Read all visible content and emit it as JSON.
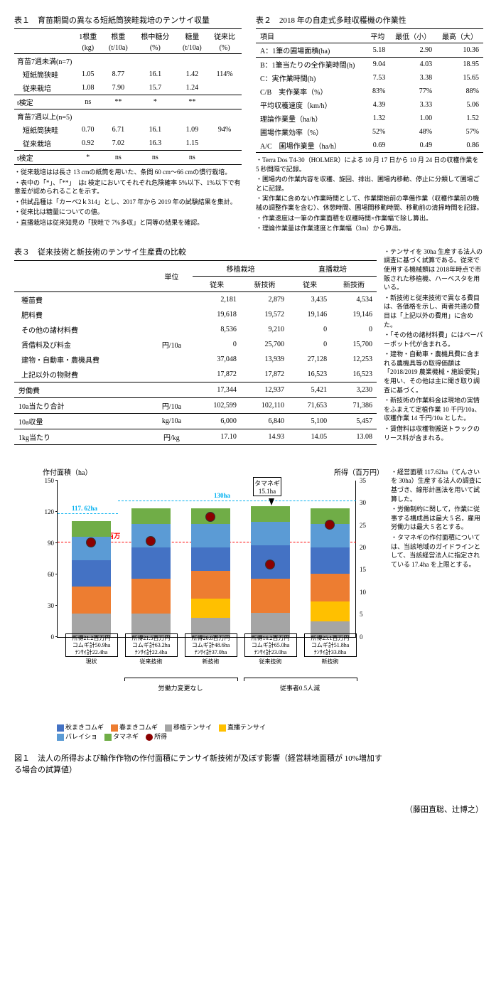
{
  "table1": {
    "title": "表１　育苗期間の異なる短紙筒狭畦栽培のテンサイ収量",
    "headers": [
      "1根重",
      "根重",
      "根中糖分",
      "糖量",
      "従来比"
    ],
    "units": [
      "(kg)",
      "(t/10a)",
      "(%)",
      "(t/10a)",
      "(%)"
    ],
    "group1": "育苗7週未満(n=7)",
    "rows1": [
      {
        "name": "短紙筒狭畦",
        "v": [
          "1.05",
          "8.77",
          "16.1",
          "1.42",
          "114%"
        ]
      },
      {
        "name": "従来栽培",
        "v": [
          "1.08",
          "7.90",
          "15.7",
          "1.24",
          ""
        ]
      }
    ],
    "ttest1": {
      "name": "t検定",
      "v": [
        "ns",
        "**",
        "*",
        "**",
        ""
      ]
    },
    "group2": "育苗7週以上(n=5)",
    "rows2": [
      {
        "name": "短紙筒狭畦",
        "v": [
          "0.70",
          "6.71",
          "16.1",
          "1.09",
          "94%"
        ]
      },
      {
        "name": "従来栽培",
        "v": [
          "0.92",
          "7.02",
          "16.3",
          "1.15",
          ""
        ]
      }
    ],
    "ttest2": {
      "name": "t検定",
      "v": [
        "*",
        "ns",
        "ns",
        "ns",
        ""
      ]
    },
    "notes": [
      "・従来栽培はは長さ 13 cmの紙筒を用いた、条間 60 cm～66 cmの慣行栽培。",
      "・表中の「*」、「**」　はt 検定においてそれぞれ危険確率 5%以下、1%以下で有意差が認められることを示す。",
      "・供試品種は「カーベ2ｋ314」とし、2017 年から 2019 年の試験結果を集計。",
      "・従来比は糖量についての値。",
      "・直播栽培は従来知見の「狭畦で 7%多収」と同等の結果を確認。"
    ]
  },
  "table2": {
    "title": "表２　2018 年の自走式多畦収穫機の作業性",
    "hdr": [
      "項目",
      "平均",
      "最低（小）",
      "最高（大）"
    ],
    "rows": [
      [
        "A：1筆の圃場面積(ha)",
        "5.18",
        "2.90",
        "10.36"
      ],
      [
        "B：1筆当たりの全作業時間(h)",
        "9.04",
        "4.03",
        "18.95"
      ],
      [
        "C：実作業時間(h)",
        "7.53",
        "3.38",
        "15.65"
      ],
      [
        "C/B　実作業率（%）",
        "83%",
        "77%",
        "88%"
      ],
      [
        "平均収穫速度（km/h）",
        "4.39",
        "3.33",
        "5.06"
      ],
      [
        "理論作業量（ha/h）",
        "1.32",
        "1.00",
        "1.52"
      ],
      [
        "圃場作業効率（%）",
        "52%",
        "48%",
        "57%"
      ],
      [
        "A/C　圃場作業量（ha/h）",
        "0.69",
        "0.49",
        "0.86"
      ]
    ],
    "notes": [
      "・Terra Dos T4-30（HOLMER）による 10 月 17 日から 10 月 24 日の収穫作業を 5 秒間隔で記録。",
      "・圃場内の作業内容を収穫、旋回、排出、圃場内移動、停止に分類して圃場ごとに記録。",
      "・実作業に含めない作業時間として、作業開始前の準備作業（収穫作業前の機械の調整作業を含む）、休憩時間、圃場間移動時間、移動前の清掃時間を記録。",
      "・作業速度は一筆の作業面積を収穫時間×作業幅で除し算出。",
      "・理論作業量は作業速度と作業幅（3m）から算出。"
    ]
  },
  "table3": {
    "title": "表３　従来技術と新技術のテンサイ生産費の比較",
    "hdr1": [
      "単位",
      "移植栽培",
      "直播栽培"
    ],
    "hdr2": [
      "従来",
      "新技術",
      "従来",
      "新技術"
    ],
    "unit": "円/10a",
    "rows": [
      [
        "種苗費",
        "2,181",
        "2,879",
        "3,435",
        "4,534"
      ],
      [
        "肥料費",
        "19,618",
        "19,572",
        "19,146",
        "19,146"
      ],
      [
        "その他の諸材料費",
        "8,536",
        "9,210",
        "0",
        "0"
      ],
      [
        "賃借料及び料金",
        "0",
        "25,700",
        "0",
        "15,700"
      ],
      [
        "建物・自動車・農機具費",
        "37,048",
        "13,939",
        "27,128",
        "12,253"
      ],
      [
        "上記以外の物財費",
        "17,872",
        "17,872",
        "16,523",
        "16,523"
      ]
    ],
    "labor": [
      "労働費",
      "17,344",
      "12,937",
      "5,421",
      "3,230"
    ],
    "sum": [
      "10a当たり合計",
      "円/10a",
      "102,599",
      "102,110",
      "71,653",
      "71,386"
    ],
    "yield": [
      "10a収量",
      "kg/10a",
      "6,000",
      "6,840",
      "5,100",
      "5,457"
    ],
    "perkg": [
      "1kg当たり",
      "円/kg",
      "17.10",
      "14.93",
      "14.05",
      "13.08"
    ],
    "notes": [
      "・テンサイを 30ha 生産する法人の調査に基づく試算である。従来で使用する機械類は 2018年時点で市販された移植機、ハーベスタを用いる。",
      "・新技術と従来技術で異なる費目は、各価格を示し、両者共通の費目は「上記以外の費用」に含めた。",
      "・「その他の諸材料費」にはペーパーポット代が含まれる。",
      "・建物・自動車・農機具費に含まれる農機具等の取得価額は「2018/2019 農業機械・施設便覧」を用い、その他は主に聞き取り調査に基づく。",
      "・新技術の作業料金は現地の実情をふまえて定植作業 10 千円/10a、収穫作業 14 千円/10a とした。",
      "・賃借料は収穫物搬送トラックのリース料が含まれる。"
    ]
  },
  "figure1": {
    "ylabel_l": "作付面積（ha）",
    "ylabel_r": "所得（百万円）",
    "ylim": [
      0,
      150
    ],
    "yticks_l": [
      0,
      30,
      60,
      90,
      120,
      150
    ],
    "yticks_r": [
      0,
      5,
      10,
      15,
      20,
      25,
      30,
      35
    ],
    "ref117": "117. 62ha",
    "ref130": "130ha",
    "ref_income": "21. 2 百万",
    "tamanegi_callout": "タマネギ\n15.1ha",
    "colors": {
      "autumn_wheat": "#4472c4",
      "spring_wheat": "#ed7d31",
      "transplant": "#a5a5a5",
      "direct": "#ffc000",
      "potato": "#5b9bd5",
      "onion": "#70ad47",
      "income": "#8b0000",
      "ref_cyan": "#00b0f0",
      "ref_red": "#ff0000"
    },
    "categories": [
      "現状",
      "従来技術",
      "新技術",
      "従来技術",
      "新技術"
    ],
    "group_labels": [
      "労働力変更なし",
      "従事者0.5人減"
    ],
    "bar_labels": [
      "所得21.2百万円\nコムギ計50.9ha\nﾃﾝｻｲ計22.4ha",
      "所得21.5百万円\nコムギ計63.2ha\nﾃﾝｻｲ計22.4ha",
      "所得26.8百万円\nコムギ計48.6ha\nﾃﾝｻｲ計37.0ha",
      "所得16.2百万円\nコムギ計65.0ha\nﾃﾝｻｲ計23.0ha",
      "所得25.1百万円\nコムギ計51.8ha\nﾃﾝｻｲ計33.8ha"
    ],
    "stacks": [
      [
        22.4,
        0,
        25,
        25.9,
        15,
        22.4,
        7
      ],
      [
        22.4,
        0,
        30,
        33.2,
        15,
        22.4,
        7
      ],
      [
        18,
        19,
        22,
        26.6,
        15,
        22.4,
        7
      ],
      [
        23,
        0,
        32,
        33,
        15,
        22.4,
        7
      ],
      [
        15,
        18.8,
        25,
        26.8,
        15,
        22.4,
        7
      ]
    ],
    "income": [
      21.2,
      21.5,
      26.8,
      16.2,
      25.1
    ],
    "legend": [
      {
        "label": "秋まきコムギ",
        "color": "autumn_wheat"
      },
      {
        "label": "春まきコムギ",
        "color": "spring_wheat"
      },
      {
        "label": "移植テンサイ",
        "color": "transplant"
      },
      {
        "label": "直播テンサイ",
        "color": "direct"
      },
      {
        "label": "バレイショ",
        "color": "potato"
      },
      {
        "label": "タマネギ",
        "color": "onion"
      },
      {
        "label": "所得",
        "color": "income",
        "shape": "circle"
      }
    ],
    "caption": "図１　法人の所得および輪作作物の作付面積にテンサイ新技術が及ぼす影響（経営耕地面積が 10%増加する場合の試算値）",
    "notes": [
      "・経営面積 117.62ha（てんさいを 30ha）生産する法人の調査に基づき、線形計画法を用いて試算した。",
      "・労働制約に関して，作業に従事する構成員は最大 5 名，雇用労働力は最大 5 名とする。",
      "・タマネギの作付面積については、当該地域のガイドラインとして、当該経営法人に指定されている 17.4ha を上限とする。"
    ]
  },
  "author": "（藤田直聡、辻博之）"
}
